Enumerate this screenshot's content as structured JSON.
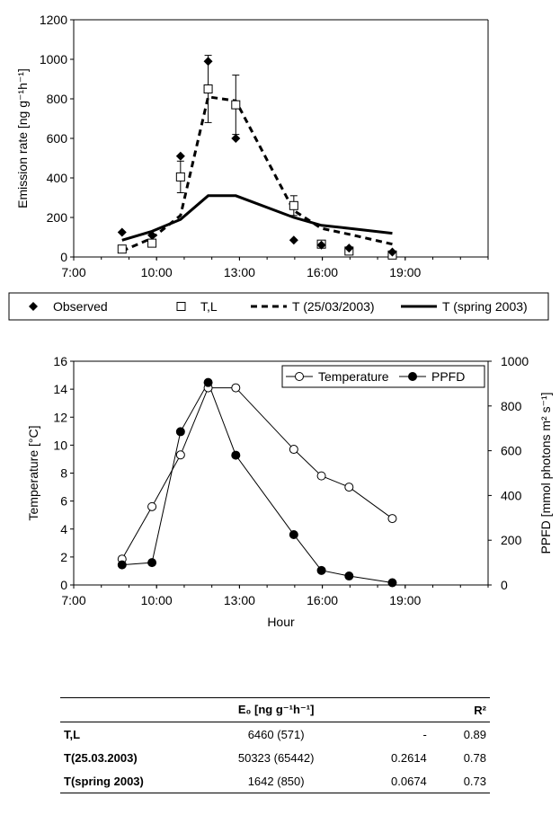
{
  "chart_data": [
    {
      "type": "scatter",
      "ylabel": "Emission rate [ng g⁻¹h⁻¹]",
      "ylim": [
        0,
        1200
      ],
      "yticks": [
        0,
        200,
        400,
        600,
        800,
        1000,
        1200
      ],
      "xlim": [
        "7:00",
        "22:00"
      ],
      "xticks": [
        "7:00",
        "10:00",
        "13:00",
        "16:00",
        "19:00"
      ],
      "grid": false,
      "legend_position": "bottom",
      "series": [
        {
          "name": "Observed",
          "marker": "diamond-filled",
          "x": [
            "8:45",
            "9:50",
            "10:52",
            "11:52",
            "12:52",
            "14:58",
            "15:58",
            "16:58",
            "18:32"
          ],
          "y": [
            125,
            110,
            510,
            990,
            600,
            85,
            60,
            45,
            25
          ]
        },
        {
          "name": "T,L",
          "marker": "square-open",
          "x": [
            "8:45",
            "9:50",
            "10:52",
            "11:52",
            "12:52",
            "14:58",
            "15:58",
            "16:58",
            "18:32"
          ],
          "y": [
            40,
            70,
            405,
            850,
            770,
            260,
            65,
            30,
            10
          ],
          "err": [
            0,
            0,
            80,
            170,
            150,
            50,
            0,
            0,
            0
          ]
        },
        {
          "name": "T (25/03/2003)",
          "line": "dashed",
          "x": [
            "8:45",
            "9:50",
            "10:52",
            "11:52",
            "12:52",
            "14:58",
            "15:58",
            "16:58",
            "18:32"
          ],
          "y": [
            30,
            95,
            210,
            810,
            790,
            235,
            145,
            115,
            65
          ]
        },
        {
          "name": "T (spring 2003)",
          "line": "solid",
          "x": [
            "8:45",
            "9:50",
            "10:52",
            "11:52",
            "12:52",
            "14:58",
            "15:58",
            "16:58",
            "18:32"
          ],
          "y": [
            85,
            130,
            190,
            310,
            310,
            200,
            160,
            145,
            120
          ]
        }
      ]
    },
    {
      "type": "line",
      "xlabel": "Hour",
      "ylabel": "Temperature [°C]",
      "ylabel_right": "PPFD [mmol photons m² s⁻¹]",
      "ylim": [
        0,
        16
      ],
      "yticks": [
        0,
        2,
        4,
        6,
        8,
        10,
        12,
        14,
        16
      ],
      "ylim_right": [
        0,
        1000
      ],
      "yticks_right": [
        0,
        200,
        400,
        600,
        800,
        1000
      ],
      "xlim": [
        "7:00",
        "22:00"
      ],
      "xticks": [
        "7:00",
        "10:00",
        "13:00",
        "16:00",
        "19:00"
      ],
      "grid": false,
      "legend_position": "top-right",
      "series": [
        {
          "name": "Temperature",
          "axis": "left",
          "marker": "circle-open",
          "x": [
            "8:45",
            "9:50",
            "10:52",
            "11:52",
            "12:52",
            "14:58",
            "15:58",
            "16:58",
            "18:32"
          ],
          "y": [
            1.85,
            5.6,
            9.3,
            14.1,
            14.1,
            9.7,
            7.8,
            7.0,
            4.75
          ]
        },
        {
          "name": "PPFD",
          "axis": "right",
          "marker": "circle-filled",
          "x": [
            "8:45",
            "9:50",
            "10:52",
            "11:52",
            "12:52",
            "14:58",
            "15:58",
            "16:58",
            "18:32"
          ],
          "y": [
            90,
            100,
            685,
            905,
            580,
            225,
            65,
            40,
            10
          ]
        }
      ]
    },
    {
      "type": "table",
      "columns": [
        "",
        "E₀ [ng g⁻¹h⁻¹]",
        "",
        "R²"
      ],
      "rows": [
        [
          "T,L",
          "6460 (571)",
          "-",
          "0.89"
        ],
        [
          "T(25.03.2003)",
          "50323 (65442)",
          "0.2614",
          "0.78"
        ],
        [
          "T(spring 2003)",
          "1642 (850)",
          "0.0674",
          "0.73"
        ]
      ]
    }
  ]
}
